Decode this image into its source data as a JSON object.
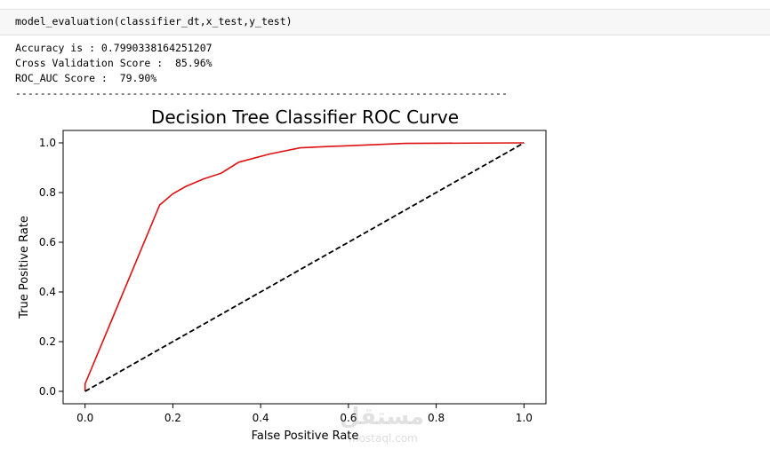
{
  "cell": {
    "code": "model_evaluation(classifier_dt,x_test,y_test)"
  },
  "output": {
    "lines": [
      "Accuracy is : 0.7990338164251207",
      "Cross Validation Score :  85.96%",
      "ROC_AUC Score :  79.90%",
      "--------------------------------------------------------------------------------"
    ]
  },
  "watermark": {
    "text": "مستقل",
    "sub": "mostaql.com"
  },
  "chart_data": {
    "type": "line",
    "title": "Decision Tree Classifier ROC Curve",
    "xlabel": "False Positive Rate",
    "ylabel": "True Positive Rate",
    "xlim": [
      -0.05,
      1.05
    ],
    "ylim": [
      -0.05,
      1.05
    ],
    "xticks": [
      0.0,
      0.2,
      0.4,
      0.6,
      0.8,
      1.0
    ],
    "yticks": [
      0.0,
      0.2,
      0.4,
      0.6,
      0.8,
      1.0
    ],
    "xtick_labels": [
      "0.0",
      "0.2",
      "0.4",
      "0.6",
      "0.8",
      "1.0"
    ],
    "ytick_labels": [
      "0.0",
      "0.2",
      "0.4",
      "0.6",
      "0.8",
      "1.0"
    ],
    "grid": false,
    "series": [
      {
        "color": "#dd1111",
        "style": "solid",
        "x": [
          0.0,
          0.0,
          0.17,
          0.2,
          0.23,
          0.27,
          0.31,
          0.35,
          0.42,
          0.49,
          0.55,
          0.73,
          1.0
        ],
        "y": [
          0.0,
          0.03,
          0.75,
          0.795,
          0.825,
          0.855,
          0.878,
          0.922,
          0.955,
          0.98,
          0.985,
          0.998,
          1.0
        ]
      },
      {
        "color": "#000000",
        "style": "dashed",
        "x": [
          0.0,
          1.0
        ],
        "y": [
          0.0,
          1.0
        ]
      }
    ]
  }
}
